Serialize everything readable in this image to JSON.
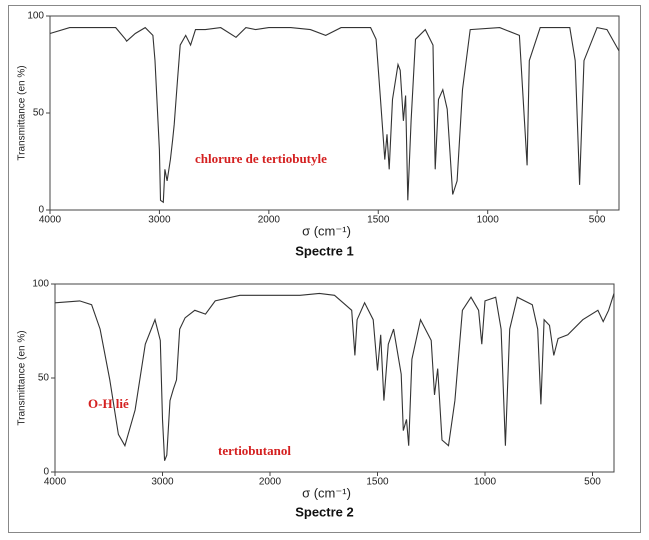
{
  "chart_data": [
    {
      "type": "line",
      "title": "Spectre 1",
      "xlabel": "σ (cm⁻¹)",
      "ylabel": "Transmittance (en %)",
      "annotations": [
        "chlorure de tertiobutyle"
      ],
      "color": "#333333",
      "xlim": [
        4000,
        400
      ],
      "xticks": [
        4000,
        3000,
        2000,
        1500,
        1000,
        500
      ],
      "ylim": [
        0,
        100
      ],
      "yticks": [
        0,
        50,
        100
      ],
      "x": [
        4000,
        3820,
        3590,
        3400,
        3310,
        3300,
        3220,
        3130,
        3060,
        3040,
        3000,
        2990,
        2965,
        2950,
        2930,
        2900,
        2880,
        2865,
        2835,
        2810,
        2760,
        2715,
        2670,
        2580,
        2440,
        2300,
        2210,
        2120,
        2000,
        1900,
        1810,
        1740,
        1670,
        1535,
        1510,
        1490,
        1470,
        1460,
        1450,
        1435,
        1410,
        1400,
        1385,
        1375,
        1365,
        1350,
        1330,
        1285,
        1250,
        1240,
        1225,
        1205,
        1185,
        1160,
        1140,
        1115,
        1080,
        945,
        855,
        820,
        810,
        760,
        625,
        600,
        580,
        560,
        500,
        455,
        400
      ],
      "values": [
        91,
        94,
        94,
        94,
        88,
        87,
        91,
        94,
        90,
        77,
        31,
        5,
        4,
        21,
        15,
        26,
        36,
        44,
        67,
        85,
        90,
        85,
        93,
        93,
        94,
        89,
        94,
        93,
        94,
        94,
        93,
        90,
        94,
        94,
        88,
        57,
        26,
        39,
        21,
        57,
        75,
        72,
        46,
        59,
        5,
        46,
        88,
        93,
        85,
        21,
        57,
        62,
        52,
        8,
        15,
        62,
        93,
        94,
        90,
        23,
        77,
        94,
        94,
        77,
        13,
        77,
        94,
        93,
        82
      ]
    },
    {
      "type": "line",
      "title": "Spectre 2",
      "xlabel": "σ (cm⁻¹)",
      "ylabel": "Transmittance (en %)",
      "annotations": [
        "O-H lié",
        "tertiobutanol"
      ],
      "color": "#333333",
      "xlim": [
        4000,
        400
      ],
      "xticks": [
        4000,
        3000,
        2000,
        1500,
        1000,
        500
      ],
      "ylim": [
        0,
        100
      ],
      "yticks": [
        0,
        50,
        100
      ],
      "x": [
        4000,
        3770,
        3660,
        3580,
        3490,
        3410,
        3350,
        3255,
        3160,
        3070,
        3020,
        3000,
        2980,
        2960,
        2930,
        2900,
        2870,
        2840,
        2790,
        2700,
        2600,
        2510,
        2280,
        2000,
        1860,
        1770,
        1700,
        1650,
        1620,
        1605,
        1595,
        1560,
        1520,
        1500,
        1485,
        1470,
        1450,
        1425,
        1390,
        1380,
        1365,
        1355,
        1340,
        1300,
        1250,
        1235,
        1220,
        1200,
        1170,
        1140,
        1105,
        1065,
        1030,
        1015,
        1000,
        950,
        925,
        905,
        885,
        850,
        780,
        755,
        740,
        725,
        700,
        680,
        660,
        615,
        545,
        475,
        450,
        425,
        400
      ],
      "values": [
        90,
        91,
        89,
        76,
        49,
        20,
        14,
        33,
        68,
        81,
        70,
        28,
        6,
        9,
        38,
        44,
        49,
        76,
        82,
        86,
        84,
        91,
        94,
        94,
        94,
        95,
        94,
        89,
        86,
        62,
        81,
        90,
        81,
        54,
        73,
        38,
        68,
        76,
        52,
        22,
        28,
        14,
        60,
        81,
        70,
        41,
        55,
        17,
        14,
        38,
        86,
        93,
        86,
        68,
        91,
        93,
        76,
        14,
        76,
        93,
        89,
        76,
        36,
        81,
        78,
        62,
        71,
        73,
        81,
        86,
        80,
        86,
        95
      ]
    }
  ]
}
